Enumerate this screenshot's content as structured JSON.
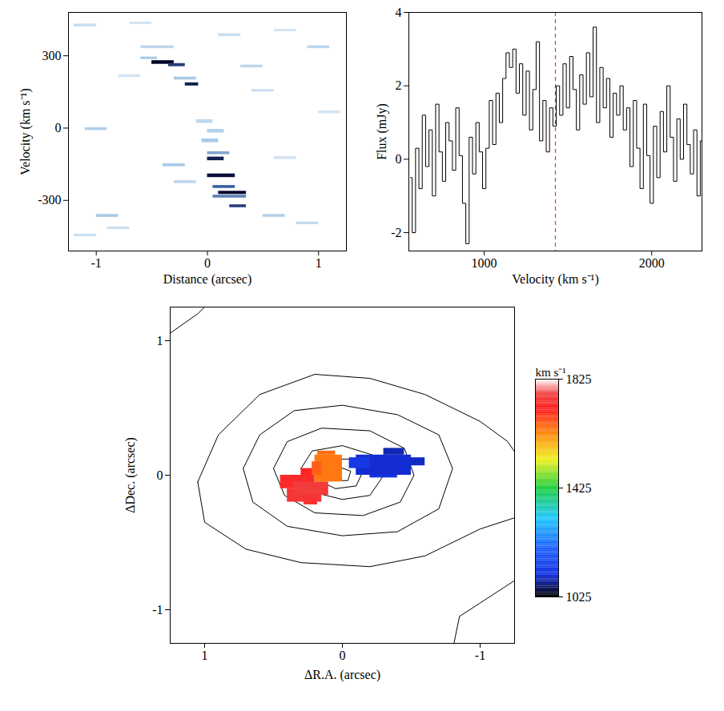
{
  "chart_data": [
    {
      "type": "heatmap",
      "xlabel": "Distance (arcsec)",
      "ylabel": "Velocity (km s⁻¹)",
      "xlim": [
        -1.25,
        1.25
      ],
      "ylim": [
        -510,
        480
      ],
      "xticks": [
        -1,
        0,
        1
      ],
      "yticks": [
        -300,
        0,
        300
      ],
      "cells": [
        [
          -0.5,
          -0.3,
          265,
          280,
          1.0
        ],
        [
          -0.35,
          -0.2,
          255,
          268,
          0.8
        ],
        [
          -0.6,
          -0.45,
          285,
          295,
          0.4
        ],
        [
          -0.2,
          -0.08,
          175,
          188,
          0.9
        ],
        [
          -0.3,
          -0.1,
          200,
          212,
          0.4
        ],
        [
          0.0,
          0.15,
          -135,
          -120,
          0.9
        ],
        [
          0.0,
          0.2,
          -110,
          -98,
          0.5
        ],
        [
          0.0,
          0.25,
          -205,
          -190,
          0.95
        ],
        [
          0.1,
          0.35,
          -275,
          -262,
          1.0
        ],
        [
          0.05,
          0.25,
          -250,
          -238,
          0.7
        ],
        [
          0.2,
          0.35,
          -330,
          -318,
          0.8
        ],
        [
          -0.05,
          0.1,
          -60,
          -45,
          0.4
        ],
        [
          0.0,
          0.15,
          -20,
          -5,
          0.35
        ],
        [
          -0.1,
          0.05,
          20,
          35,
          0.3
        ],
        [
          -0.6,
          -0.3,
          330,
          342,
          0.3
        ],
        [
          0.05,
          0.35,
          -290,
          -278,
          0.6
        ],
        [
          -1.2,
          -1.0,
          420,
          432,
          0.25
        ],
        [
          -0.7,
          -0.5,
          430,
          440,
          0.2
        ],
        [
          0.6,
          0.8,
          400,
          410,
          0.2
        ],
        [
          -1.0,
          -0.8,
          -370,
          -358,
          0.4
        ],
        [
          -0.9,
          -0.7,
          -420,
          -410,
          0.25
        ],
        [
          0.8,
          1.0,
          -400,
          -390,
          0.3
        ],
        [
          0.5,
          0.7,
          -370,
          -358,
          0.35
        ],
        [
          0.9,
          1.1,
          330,
          342,
          0.3
        ],
        [
          -1.1,
          -0.9,
          -10,
          2,
          0.35
        ],
        [
          0.4,
          0.6,
          150,
          160,
          0.25
        ],
        [
          -0.4,
          -0.2,
          -160,
          -148,
          0.4
        ],
        [
          -0.3,
          -0.1,
          -230,
          -218,
          0.3
        ],
        [
          0.6,
          0.8,
          -130,
          -118,
          0.2
        ],
        [
          -0.8,
          -0.6,
          210,
          222,
          0.2
        ],
        [
          1.0,
          1.2,
          60,
          72,
          0.2
        ],
        [
          0.3,
          0.5,
          250,
          262,
          0.3
        ],
        [
          -1.2,
          -1.0,
          -450,
          -440,
          0.25
        ],
        [
          0.1,
          0.3,
          380,
          392,
          0.25
        ]
      ]
    },
    {
      "type": "line",
      "line_style": "step",
      "xlabel": "Velocity (km s⁻¹)",
      "ylabel": "Flux (mJy)",
      "xlim": [
        550,
        2300
      ],
      "ylim": [
        -2.5,
        4
      ],
      "xticks": [
        1000,
        2000
      ],
      "yticks": [
        -2,
        0,
        2,
        4
      ],
      "x": [
        560,
        580,
        600,
        620,
        640,
        660,
        680,
        700,
        720,
        740,
        760,
        780,
        800,
        820,
        840,
        860,
        880,
        900,
        920,
        940,
        960,
        980,
        1000,
        1020,
        1040,
        1060,
        1080,
        1100,
        1120,
        1140,
        1160,
        1180,
        1200,
        1220,
        1240,
        1260,
        1280,
        1300,
        1320,
        1340,
        1360,
        1380,
        1400,
        1420,
        1440,
        1460,
        1480,
        1500,
        1520,
        1540,
        1560,
        1580,
        1600,
        1620,
        1640,
        1660,
        1680,
        1700,
        1720,
        1740,
        1760,
        1780,
        1800,
        1820,
        1840,
        1860,
        1880,
        1900,
        1920,
        1940,
        1960,
        1980,
        2000,
        2020,
        2040,
        2060,
        2080,
        2100,
        2120,
        2140,
        2160,
        2180,
        2200,
        2220,
        2240,
        2260,
        2280,
        2300
      ],
      "series": [
        {
          "color": "#000000",
          "values": [
            -0.5,
            -2.0,
            0.3,
            -0.8,
            1.2,
            -0.2,
            0.8,
            -1.0,
            1.5,
            0.2,
            -0.6,
            1.0,
            0.5,
            -0.3,
            1.4,
            0.1,
            -1.2,
            -2.3,
            0.6,
            -0.4,
            1.0,
            0.2,
            -0.8,
            0.3,
            1.6,
            0.4,
            1.8,
            1.0,
            2.2,
            2.9,
            2.5,
            3.0,
            1.8,
            2.6,
            1.2,
            2.4,
            0.8,
            1.9,
            3.2,
            0.5,
            1.6,
            0.2,
            1.4,
            0.9,
            2.0,
            1.2,
            2.6,
            1.4,
            2.8,
            1.9,
            0.8,
            2.3,
            1.5,
            2.9,
            1.7,
            3.6,
            1.0,
            2.5,
            1.4,
            2.2,
            0.6,
            1.8,
            1.2,
            2.0,
            0.8,
            1.4,
            -0.2,
            1.6,
            0.3,
            -0.8,
            1.5,
            0.1,
            -1.2,
            0.9,
            -0.5,
            1.3,
            0.2,
            2.0,
            0.6,
            -0.6,
            1.1,
            0.0,
            1.5,
            0.4,
            -0.4,
            0.8,
            -1.0,
            0.5
          ]
        }
      ],
      "reference_line": {
        "x": 1425,
        "color": "#e8382e",
        "line_style": "dashed"
      }
    },
    {
      "type": "map",
      "xlabel": "ΔR.A. (arcsec)",
      "ylabel": "ΔDec. (arcsec)",
      "xlim": [
        1.25,
        -1.25
      ],
      "ylim": [
        -1.25,
        1.25
      ],
      "xticks": [
        1,
        0,
        -1
      ],
      "yticks": [
        -1,
        0,
        1
      ],
      "contours": [
        [
          [
            1.05,
            -0.05
          ],
          [
            0.9,
            0.3
          ],
          [
            0.6,
            0.6
          ],
          [
            0.2,
            0.75
          ],
          [
            -0.2,
            0.72
          ],
          [
            -0.6,
            0.6
          ],
          [
            -1.0,
            0.4
          ],
          [
            -1.2,
            0.25
          ],
          [
            -1.3,
            0.1
          ],
          [
            -1.3,
            -0.3
          ],
          [
            -1.0,
            -0.4
          ],
          [
            -0.6,
            -0.6
          ],
          [
            -0.2,
            -0.68
          ],
          [
            0.3,
            -0.65
          ],
          [
            0.7,
            -0.55
          ],
          [
            1.0,
            -0.35
          ],
          [
            1.05,
            -0.05
          ]
        ],
        [
          [
            0.72,
            0.05
          ],
          [
            0.6,
            0.3
          ],
          [
            0.35,
            0.48
          ],
          [
            0.0,
            0.52
          ],
          [
            -0.4,
            0.45
          ],
          [
            -0.7,
            0.3
          ],
          [
            -0.8,
            0.05
          ],
          [
            -0.7,
            -0.25
          ],
          [
            -0.4,
            -0.42
          ],
          [
            0.0,
            -0.45
          ],
          [
            0.4,
            -0.38
          ],
          [
            0.65,
            -0.2
          ],
          [
            0.72,
            0.05
          ]
        ],
        [
          [
            0.5,
            0.05
          ],
          [
            0.4,
            0.25
          ],
          [
            0.15,
            0.35
          ],
          [
            -0.2,
            0.33
          ],
          [
            -0.45,
            0.2
          ],
          [
            -0.52,
            0.0
          ],
          [
            -0.42,
            -0.2
          ],
          [
            -0.15,
            -0.3
          ],
          [
            0.2,
            -0.28
          ],
          [
            0.42,
            -0.15
          ],
          [
            0.5,
            0.05
          ]
        ],
        [
          [
            0.3,
            0.05
          ],
          [
            0.22,
            0.18
          ],
          [
            0.0,
            0.22
          ],
          [
            -0.22,
            0.15
          ],
          [
            -0.3,
            0.0
          ],
          [
            -0.2,
            -0.15
          ],
          [
            0.0,
            -0.18
          ],
          [
            0.2,
            -0.13
          ],
          [
            0.3,
            0.05
          ]
        ],
        [
          [
            0.18,
            0.03
          ],
          [
            0.1,
            0.12
          ],
          [
            -0.05,
            0.12
          ],
          [
            -0.15,
            0.03
          ],
          [
            -0.1,
            -0.08
          ],
          [
            0.05,
            -0.1
          ],
          [
            0.15,
            -0.05
          ],
          [
            0.18,
            0.03
          ]
        ],
        [
          [
            0.08,
            0.02
          ],
          [
            0.02,
            0.06
          ],
          [
            -0.06,
            0.03
          ],
          [
            -0.04,
            -0.04
          ],
          [
            0.04,
            -0.04
          ],
          [
            0.08,
            0.02
          ]
        ],
        [
          [
            1.3,
            1.02
          ],
          [
            1.05,
            1.2
          ],
          [
            0.95,
            1.3
          ]
        ],
        [
          [
            -0.8,
            -1.3
          ],
          [
            -0.85,
            -1.05
          ],
          [
            -1.0,
            -0.95
          ],
          [
            -1.3,
            -0.75
          ]
        ]
      ],
      "pixels": [
        [
          0.45,
          0.2,
          -0.1,
          0.0,
          1730
        ],
        [
          0.4,
          0.15,
          -0.2,
          -0.1,
          1750
        ],
        [
          0.35,
          0.1,
          -0.15,
          -0.05,
          1760
        ],
        [
          0.3,
          0.2,
          0.0,
          0.05,
          1720
        ],
        [
          0.28,
          0.18,
          -0.22,
          -0.15,
          1745
        ],
        [
          0.2,
          0.0,
          -0.05,
          0.15,
          1640
        ],
        [
          0.18,
          0.05,
          0.15,
          0.18,
          1650
        ],
        [
          0.22,
          0.15,
          0.0,
          0.1,
          1660
        ],
        [
          -0.1,
          -0.5,
          0.0,
          0.15,
          1100
        ],
        [
          -0.05,
          -0.2,
          0.05,
          0.13,
          1120
        ],
        [
          -0.3,
          -0.45,
          0.15,
          0.2,
          1090
        ],
        [
          -0.5,
          -0.6,
          0.07,
          0.13,
          1095
        ],
        [
          -0.2,
          -0.4,
          -0.02,
          0.0,
          1110
        ]
      ],
      "colorbar": {
        "label": "km s⁻¹",
        "range": [
          1025,
          1825
        ],
        "ticks": [
          1025,
          1425,
          1825
        ]
      }
    }
  ]
}
